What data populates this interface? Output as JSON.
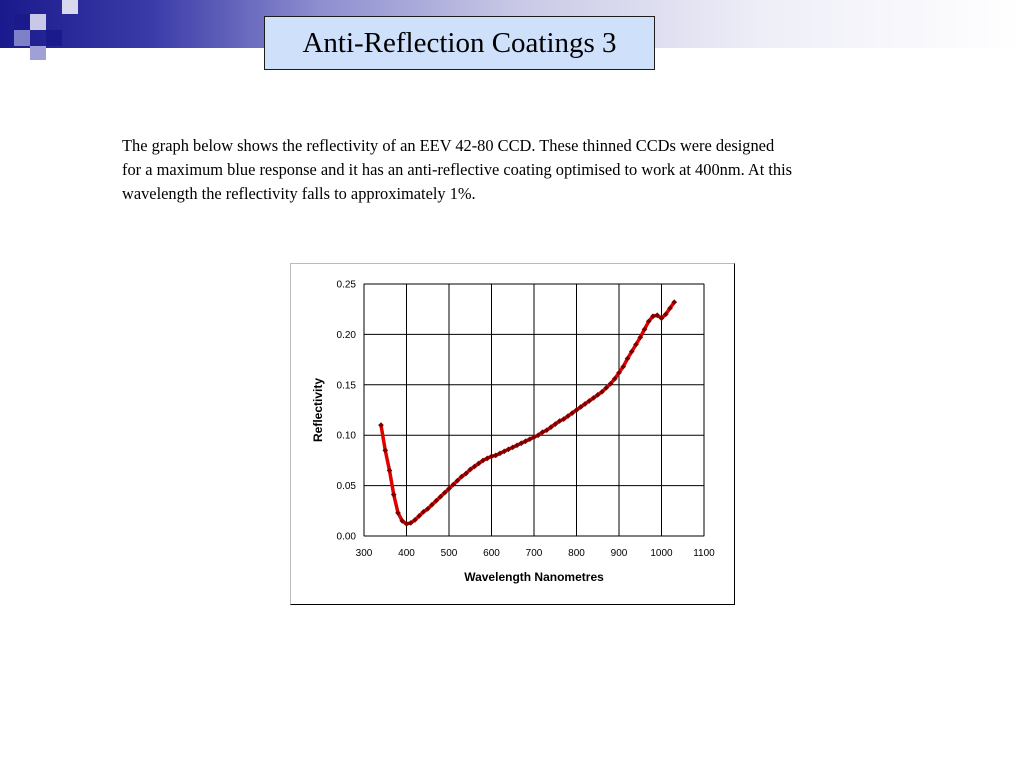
{
  "slide": {
    "title": "Anti-Reflection Coatings 3",
    "paragraph_lines": [
      "The graph below shows the reflectivity of an EEV 42-80 CCD. These thinned CCDs were designed",
      "for a maximum blue response and it has an anti-reflective coating  optimised to work at 400nm. At this",
      "wavelength the reflectivity falls to approximately 1%."
    ]
  },
  "colors": {
    "header_dark": "#1a1a8c",
    "title_box_bg": "#cfe0fb",
    "line": "#e00000",
    "marker": "#7a0000"
  },
  "chart_data": {
    "type": "line",
    "title": "",
    "xlabel": "Wavelength Nanometres",
    "ylabel": "Reflectivity",
    "xlim": [
      300,
      1100
    ],
    "ylim": [
      0,
      0.25
    ],
    "x_ticks": [
      "300",
      "400",
      "500",
      "600",
      "700",
      "800",
      "900",
      "1000",
      "1100"
    ],
    "y_ticks": [
      "0.00",
      "0.05",
      "0.10",
      "0.15",
      "0.20",
      "0.25"
    ],
    "grid": true,
    "legend": "none",
    "series": [
      {
        "x": [
          340,
          350,
          360,
          370,
          380,
          390,
          400,
          410,
          420,
          430,
          440,
          450,
          460,
          470,
          480,
          490,
          500,
          510,
          520,
          530,
          540,
          550,
          560,
          570,
          580,
          590,
          600,
          610,
          620,
          630,
          640,
          650,
          660,
          670,
          680,
          690,
          700,
          710,
          720,
          730,
          740,
          750,
          760,
          770,
          780,
          790,
          800,
          810,
          820,
          830,
          840,
          850,
          860,
          870,
          880,
          890,
          900,
          910,
          920,
          930,
          940,
          950,
          960,
          970,
          980,
          990,
          1000,
          1010,
          1020,
          1030
        ],
        "values": [
          0.11,
          0.085,
          0.065,
          0.041,
          0.023,
          0.015,
          0.012,
          0.013,
          0.016,
          0.02,
          0.024,
          0.027,
          0.031,
          0.035,
          0.039,
          0.043,
          0.047,
          0.051,
          0.055,
          0.059,
          0.062,
          0.066,
          0.069,
          0.072,
          0.075,
          0.077,
          0.079,
          0.08,
          0.082,
          0.084,
          0.086,
          0.088,
          0.09,
          0.092,
          0.094,
          0.096,
          0.098,
          0.1,
          0.103,
          0.105,
          0.108,
          0.111,
          0.114,
          0.116,
          0.119,
          0.122,
          0.125,
          0.128,
          0.131,
          0.134,
          0.137,
          0.14,
          0.143,
          0.147,
          0.151,
          0.156,
          0.162,
          0.168,
          0.176,
          0.183,
          0.19,
          0.197,
          0.205,
          0.213,
          0.218,
          0.219,
          0.216,
          0.22,
          0.226,
          0.232
        ]
      }
    ]
  }
}
